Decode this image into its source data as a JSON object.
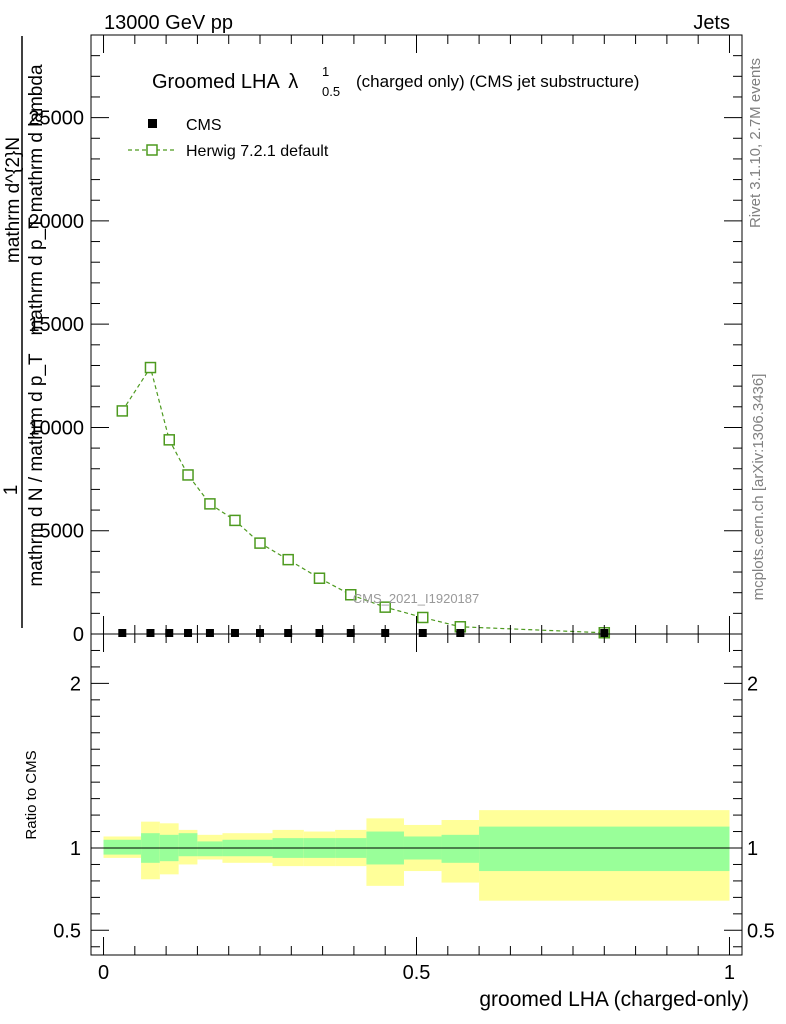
{
  "header": {
    "left": "13000 GeV pp",
    "right": "Jets"
  },
  "title": {
    "main": "Groomed LHA",
    "symbol": "λ",
    "sup": "1",
    "sub": "0.5",
    "rest": "(charged only) (CMS jet substructure)"
  },
  "side_labels": {
    "rivet": "Rivet 3.1.10,  2.7M events",
    "mcplots": "mcplots.cern.ch [arXiv:1306.3436]"
  },
  "watermark": "CMS_2021_I1920187",
  "ylabel_main": {
    "frac_num": "1",
    "den": "mathrm d N / mathrm d p_T",
    "num": "mathrm d^{2}N",
    "den2": "mathrm d p_T mathrm d lambda"
  },
  "ylabel_ratio": "Ratio to CMS",
  "xlabel": "groomed LHA (charged-only)",
  "legend": {
    "cms": "CMS",
    "herwig": "Herwig 7.2.1 default"
  },
  "colors": {
    "herwig": "#4d9a1f",
    "band_inner": "#99ff99",
    "band_outer": "#ffff99",
    "data": "#000000"
  },
  "chart_data": {
    "type": "line",
    "xlim": [
      -0.02,
      1.02
    ],
    "ylim_main": [
      0,
      29000
    ],
    "ylim_ratio": [
      0.35,
      2.3
    ],
    "x_ticks": [
      0,
      0.5,
      1
    ],
    "x_tick_labels": [
      "0",
      "0.5",
      "1"
    ],
    "y_ticks_main": [
      0,
      5000,
      10000,
      15000,
      20000,
      25000
    ],
    "y_tick_labels_main": [
      "0",
      "5000",
      "10000",
      "15000",
      "20000",
      "25000"
    ],
    "y_ticks_ratio": [
      0.5,
      1,
      2
    ],
    "y_tick_labels_ratio": [
      "0.5",
      "1",
      "2"
    ],
    "bins": [
      {
        "lo": 0.0,
        "hi": 0.06,
        "herwig": 10800,
        "cms": 0,
        "ratio_inner": [
          0.96,
          1.05
        ],
        "ratio_outer": [
          0.94,
          1.07
        ]
      },
      {
        "lo": 0.06,
        "hi": 0.09,
        "herwig": 12900,
        "cms": 0,
        "ratio_inner": [
          0.91,
          1.09
        ],
        "ratio_outer": [
          0.81,
          1.16
        ]
      },
      {
        "lo": 0.09,
        "hi": 0.12,
        "herwig": 9400,
        "cms": 0,
        "ratio_inner": [
          0.92,
          1.08
        ],
        "ratio_outer": [
          0.84,
          1.15
        ]
      },
      {
        "lo": 0.12,
        "hi": 0.15,
        "herwig": 7700,
        "cms": 0,
        "ratio_inner": [
          0.95,
          1.09
        ],
        "ratio_outer": [
          0.9,
          1.11
        ]
      },
      {
        "lo": 0.15,
        "hi": 0.19,
        "herwig": 6300,
        "cms": 0,
        "ratio_inner": [
          0.95,
          1.04
        ],
        "ratio_outer": [
          0.93,
          1.08
        ]
      },
      {
        "lo": 0.19,
        "hi": 0.23,
        "herwig": 5500,
        "cms": 0,
        "ratio_inner": [
          0.95,
          1.05
        ],
        "ratio_outer": [
          0.91,
          1.09
        ]
      },
      {
        "lo": 0.23,
        "hi": 0.27,
        "herwig": 4400,
        "cms": 0,
        "ratio_inner": [
          0.95,
          1.05
        ],
        "ratio_outer": [
          0.91,
          1.09
        ]
      },
      {
        "lo": 0.27,
        "hi": 0.32,
        "herwig": 3600,
        "cms": 0,
        "ratio_inner": [
          0.94,
          1.06
        ],
        "ratio_outer": [
          0.89,
          1.11
        ]
      },
      {
        "lo": 0.32,
        "hi": 0.37,
        "herwig": 2700,
        "cms": 0,
        "ratio_inner": [
          0.94,
          1.06
        ],
        "ratio_outer": [
          0.89,
          1.1
        ]
      },
      {
        "lo": 0.37,
        "hi": 0.42,
        "herwig": 1900,
        "cms": 0,
        "ratio_inner": [
          0.94,
          1.06
        ],
        "ratio_outer": [
          0.89,
          1.11
        ]
      },
      {
        "lo": 0.42,
        "hi": 0.48,
        "herwig": 1300,
        "cms": 0,
        "ratio_inner": [
          0.9,
          1.1
        ],
        "ratio_outer": [
          0.77,
          1.18
        ]
      },
      {
        "lo": 0.48,
        "hi": 0.54,
        "herwig": 800,
        "cms": 0,
        "ratio_inner": [
          0.93,
          1.07
        ],
        "ratio_outer": [
          0.86,
          1.14
        ]
      },
      {
        "lo": 0.54,
        "hi": 0.6,
        "herwig": 350,
        "cms": 0,
        "ratio_inner": [
          0.91,
          1.08
        ],
        "ratio_outer": [
          0.79,
          1.17
        ]
      },
      {
        "lo": 0.6,
        "hi": 1.0,
        "herwig": 60,
        "cms": 0,
        "ratio_inner": [
          0.86,
          1.13
        ],
        "ratio_outer": [
          0.68,
          1.23
        ]
      }
    ],
    "ratio_reference": 1
  }
}
